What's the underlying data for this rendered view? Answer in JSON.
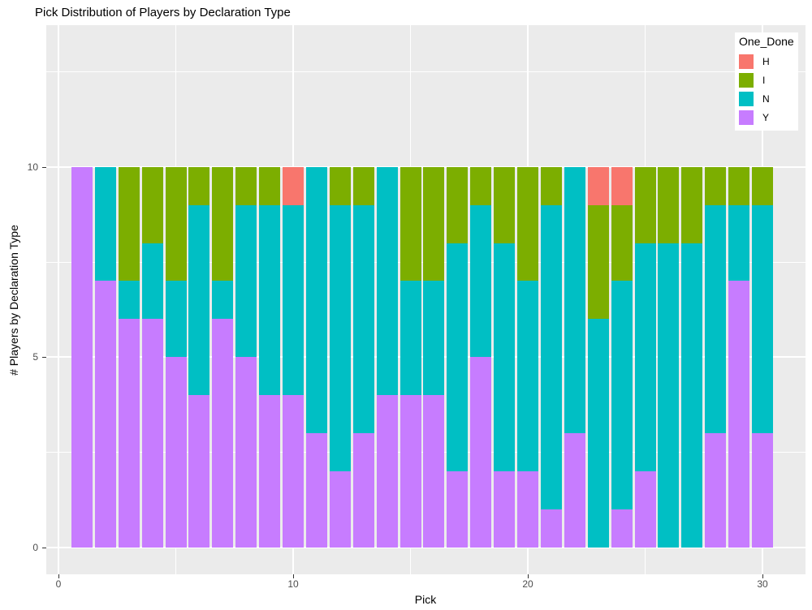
{
  "chart_data": {
    "type": "bar",
    "stacked": true,
    "title": "Pick Distribution of Players by Declaration Type",
    "xlabel": "Pick",
    "ylabel": "# Players by Declaration Type",
    "legend": {
      "title": "One_Done",
      "position": "top-right-inset",
      "items": [
        {
          "label": "H",
          "color": "#F8766D"
        },
        {
          "label": "I",
          "color": "#7CAE00"
        },
        {
          "label": "N",
          "color": "#00BFC4"
        },
        {
          "label": "Y",
          "color": "#C77CFF"
        }
      ]
    },
    "stack_order_bottom_to_top": [
      "Y",
      "N",
      "I",
      "H"
    ],
    "categories": [
      1,
      2,
      3,
      4,
      5,
      6,
      7,
      8,
      9,
      10,
      11,
      12,
      13,
      14,
      15,
      16,
      17,
      18,
      19,
      20,
      21,
      22,
      23,
      24,
      25,
      26,
      27,
      28,
      29,
      30
    ],
    "series": [
      {
        "name": "H",
        "color": "#F8766D",
        "values": [
          0,
          0,
          0,
          0,
          0,
          0,
          0,
          0,
          0,
          1,
          0,
          0,
          0,
          0,
          0,
          0,
          0,
          0,
          0,
          0,
          0,
          0,
          1,
          1,
          0,
          0,
          0,
          0,
          0,
          0
        ]
      },
      {
        "name": "I",
        "color": "#7CAE00",
        "values": [
          0,
          0,
          3,
          2,
          3,
          1,
          3,
          1,
          1,
          0,
          0,
          1,
          1,
          0,
          3,
          3,
          2,
          1,
          2,
          3,
          1,
          0,
          3,
          2,
          2,
          2,
          2,
          1,
          1,
          1
        ]
      },
      {
        "name": "N",
        "color": "#00BFC4",
        "values": [
          0,
          3,
          1,
          2,
          2,
          5,
          1,
          4,
          5,
          5,
          7,
          7,
          6,
          6,
          3,
          3,
          6,
          4,
          6,
          5,
          8,
          7,
          6,
          6,
          6,
          8,
          8,
          6,
          2,
          6
        ]
      },
      {
        "name": "Y",
        "color": "#C77CFF",
        "values": [
          10,
          7,
          6,
          6,
          5,
          4,
          6,
          5,
          4,
          4,
          3,
          2,
          3,
          4,
          4,
          4,
          2,
          5,
          2,
          2,
          1,
          3,
          0,
          1,
          2,
          0,
          0,
          3,
          7,
          3
        ]
      }
    ],
    "bar_total": 10,
    "x_axis": {
      "ticks_major": [
        0,
        10,
        20,
        30
      ],
      "ticks_minor": [
        5,
        15,
        25
      ],
      "range": [
        -0.5,
        31.8
      ]
    },
    "y_axis": {
      "ticks_major": [
        0,
        5,
        10
      ],
      "ticks_minor": [
        2.5,
        7.5,
        12.5
      ],
      "range": [
        -0.7,
        13.7
      ]
    },
    "style": {
      "panel_background": "#EBEBEB",
      "gridline_color": "#FFFFFF",
      "tick_text_color": "#4D4D4D",
      "title_text_color": "#000000",
      "grid": "on"
    }
  }
}
